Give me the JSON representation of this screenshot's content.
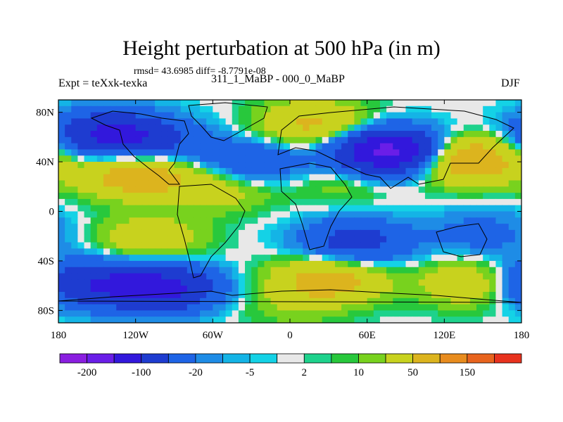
{
  "chart_data": {
    "type": "heatmap",
    "title": "Height perturbation at 500 hPa (in m)",
    "subtitle_stats": "rmsd= 43.6985 diff= -8.7791e-08",
    "left_label": "Expt = teXxk-texka",
    "center_label": "311_1_MaBP - 000_0_MaBP",
    "right_label": "DJF",
    "x_ticks": [
      "180",
      "120W",
      "60W",
      "0",
      "60E",
      "120E",
      "180"
    ],
    "x_tick_values": [
      -180,
      -120,
      -60,
      0,
      60,
      120,
      180
    ],
    "y_ticks": [
      "80N",
      "40N",
      "0",
      "40S",
      "80S"
    ],
    "y_tick_values": [
      80,
      40,
      0,
      -40,
      -80
    ],
    "xlim": [
      -180,
      180
    ],
    "ylim": [
      -90,
      90
    ],
    "colorbar_labels": [
      "-200",
      "-100",
      "-20",
      "-5",
      "2",
      "10",
      "50",
      "150"
    ],
    "levels": [
      -200,
      -150,
      -100,
      -50,
      -20,
      -10,
      -5,
      -2,
      2,
      5,
      10,
      20,
      50,
      100,
      150,
      200
    ],
    "colors": [
      "#8a1ee0",
      "#6a1ee8",
      "#3218dc",
      "#1e3cd0",
      "#1e64e6",
      "#1e8ce6",
      "#14b4e6",
      "#14d2e6",
      "#e8e8e8",
      "#1ed28c",
      "#28c83c",
      "#78d21e",
      "#c8d21e",
      "#dcb41e",
      "#e88c1e",
      "#e8641e",
      "#e8321e"
    ],
    "anomaly_centers": [
      {
        "lon": -140,
        "lat": 62,
        "value": -110
      },
      {
        "lon": 78,
        "lat": 48,
        "value": -180
      },
      {
        "lon": -100,
        "lat": 55,
        "value": -40
      },
      {
        "lon": -120,
        "lat": 30,
        "value": 80
      },
      {
        "lon": 135,
        "lat": 42,
        "value": 100
      },
      {
        "lon": -55,
        "lat": 20,
        "value": 40
      },
      {
        "lon": -30,
        "lat": 38,
        "value": -55
      },
      {
        "lon": 20,
        "lat": 70,
        "value": 60
      },
      {
        "lon": 40,
        "lat": 25,
        "value": 20
      },
      {
        "lon": -110,
        "lat": -22,
        "value": 40
      },
      {
        "lon": 50,
        "lat": -25,
        "value": -70
      },
      {
        "lon": 150,
        "lat": -18,
        "value": -30
      },
      {
        "lon": -100,
        "lat": -62,
        "value": -120
      },
      {
        "lon": -160,
        "lat": -58,
        "value": -90
      },
      {
        "lon": 30,
        "lat": -55,
        "value": 70
      },
      {
        "lon": 145,
        "lat": -58,
        "value": 50
      },
      {
        "lon": 0,
        "lat": -75,
        "value": 15
      }
    ]
  }
}
